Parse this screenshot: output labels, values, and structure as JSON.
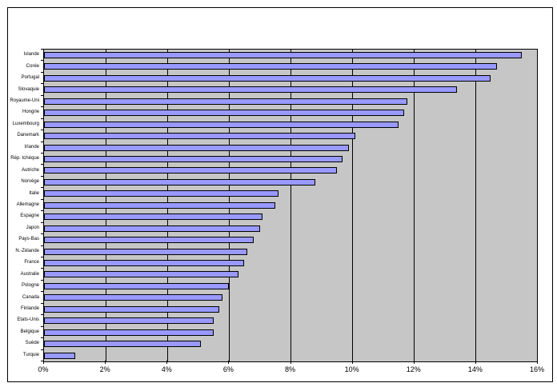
{
  "chart_data": {
    "type": "bar",
    "orientation": "horizontal",
    "title": "",
    "xlabel": "",
    "ylabel": "",
    "categories": [
      "Islande",
      "Corée",
      "Portugal",
      "Slovaquie",
      "Royaume-Uni",
      "Hongrie",
      "Luxembourg",
      "Danemark",
      "Irlande",
      "Rép. tchèque",
      "Autriche",
      "Norvège",
      "Italie",
      "Allemagne",
      "Espagne",
      "Japon",
      "Pays-Bas",
      "N.-Zélande",
      "France",
      "Australie",
      "Pologne",
      "Canada",
      "Finlande",
      "Etats-Unis",
      "Belgique",
      "Suède",
      "Turquie"
    ],
    "values": [
      15.5,
      14.7,
      14.5,
      13.4,
      11.8,
      11.7,
      11.5,
      10.1,
      9.9,
      9.7,
      9.5,
      8.8,
      7.6,
      7.5,
      7.1,
      7.0,
      6.8,
      6.6,
      6.5,
      6.3,
      6.0,
      5.8,
      5.7,
      5.5,
      5.5,
      5.1,
      1.0
    ],
    "xlim": [
      0,
      16
    ],
    "xtick_values": [
      0,
      2,
      4,
      6,
      8,
      10,
      12,
      14,
      16
    ],
    "xtick_labels": [
      "0%",
      "2%",
      "4%",
      "6%",
      "8%",
      "10%",
      "12%",
      "14%",
      "16%"
    ],
    "grid": "vertical-gridlines-every-2pct",
    "legend": "none",
    "colors": {
      "bar_fill": "#9999FF",
      "bar_border": "#000000",
      "plot_bg": "#C6C6C6",
      "gridline": "#000000",
      "chart_bg": "#FFFFFF",
      "frame_border": "#000000"
    }
  }
}
